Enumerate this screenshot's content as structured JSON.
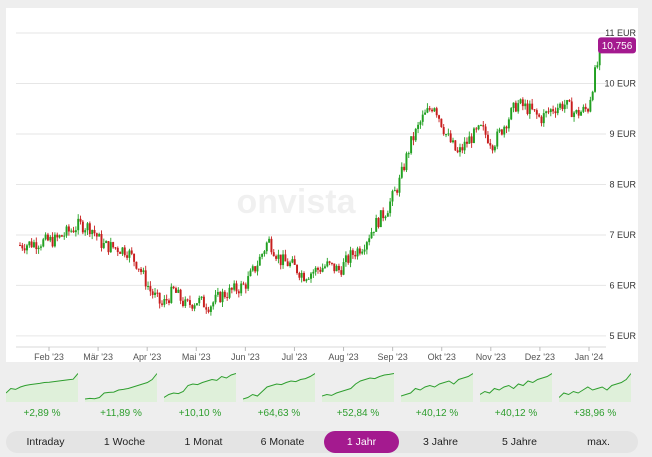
{
  "chart_data": {
    "type": "candlestick",
    "title": "",
    "watermark": "onvista",
    "y_unit": "EUR",
    "y_ticks": [
      {
        "value": 5,
        "label": "5 EUR"
      },
      {
        "value": 6,
        "label": "6 EUR"
      },
      {
        "value": 7,
        "label": "7 EUR"
      },
      {
        "value": 8,
        "label": "8 EUR"
      },
      {
        "value": 9,
        "label": "9 EUR"
      },
      {
        "value": 10,
        "label": "10 EUR"
      },
      {
        "value": 11,
        "label": "11 EUR"
      }
    ],
    "ylim": [
      4.8,
      11.1
    ],
    "x_ticks": [
      "Feb '23",
      "Mär '23",
      "Apr '23",
      "Mai '23",
      "Jun '23",
      "Jul '23",
      "Aug '23",
      "Sep '23",
      "Okt '23",
      "Nov '23",
      "Dez '23",
      "Jan '24"
    ],
    "current_price": {
      "value": 10.756,
      "label": "10,756"
    },
    "path_points": [
      [
        0,
        6.8
      ],
      [
        3,
        6.9
      ],
      [
        5,
        7.2
      ],
      [
        6,
        7.15
      ],
      [
        7,
        6.8
      ],
      [
        9,
        6.7
      ],
      [
        10,
        6.4
      ],
      [
        11,
        5.9
      ],
      [
        12,
        5.6
      ],
      [
        13,
        5.9
      ],
      [
        14,
        5.6
      ],
      [
        15,
        5.7
      ],
      [
        16,
        5.6
      ],
      [
        17,
        5.8
      ],
      [
        18,
        5.9
      ],
      [
        19,
        6.0
      ],
      [
        20,
        6.4
      ],
      [
        21,
        6.9
      ],
      [
        22,
        6.5
      ],
      [
        23,
        6.4
      ],
      [
        24,
        6.2
      ],
      [
        25,
        6.3
      ],
      [
        26,
        6.4
      ],
      [
        27,
        6.3
      ],
      [
        28,
        6.6
      ],
      [
        29,
        6.8
      ],
      [
        30,
        7.2
      ],
      [
        31,
        7.5
      ],
      [
        32,
        8.0
      ],
      [
        33,
        8.8
      ],
      [
        34,
        9.3
      ],
      [
        35,
        9.6
      ],
      [
        36,
        9.0
      ],
      [
        37,
        8.6
      ],
      [
        38,
        8.9
      ],
      [
        39,
        9.1
      ],
      [
        40,
        8.8
      ],
      [
        41,
        9.2
      ],
      [
        42,
        9.6
      ],
      [
        43,
        9.5
      ],
      [
        44,
        9.3
      ],
      [
        45,
        9.5
      ],
      [
        46,
        9.6
      ],
      [
        47,
        9.4
      ],
      [
        48,
        9.5
      ],
      [
        48.7,
        10.3
      ],
      [
        49,
        10.5
      ]
    ],
    "colors": {
      "up": "#22a022",
      "down": "#c81e1e",
      "accent": "#a41a8f",
      "grid": "#e6e6e6",
      "mini_line": "#2e9e2e",
      "mini_fill": "#dff0da"
    }
  },
  "mini_charts": [
    {
      "label": "+2,89 %",
      "values": [
        0.3,
        0.45,
        0.42,
        0.5,
        0.55,
        0.58,
        0.6,
        0.62,
        0.65,
        0.66,
        0.68,
        0.7,
        0.72,
        0.74,
        0.76,
        0.95
      ]
    },
    {
      "label": "+11,89 %",
      "values": [
        0.1,
        0.12,
        0.11,
        0.15,
        0.3,
        0.32,
        0.33,
        0.4,
        0.42,
        0.45,
        0.5,
        0.55,
        0.6,
        0.65,
        0.75,
        0.95
      ]
    },
    {
      "label": "+10,10 %",
      "values": [
        0.15,
        0.25,
        0.3,
        0.28,
        0.35,
        0.55,
        0.6,
        0.58,
        0.65,
        0.7,
        0.75,
        0.72,
        0.85,
        0.8,
        0.9,
        0.95
      ]
    },
    {
      "label": "+64,63 %",
      "values": [
        0.1,
        0.15,
        0.25,
        0.2,
        0.35,
        0.5,
        0.55,
        0.6,
        0.58,
        0.65,
        0.7,
        0.68,
        0.75,
        0.78,
        0.85,
        0.95
      ]
    },
    {
      "label": "+52,84 %",
      "values": [
        0.2,
        0.25,
        0.22,
        0.3,
        0.35,
        0.4,
        0.45,
        0.6,
        0.7,
        0.75,
        0.8,
        0.78,
        0.85,
        0.9,
        0.92,
        0.95
      ]
    },
    {
      "label": "+40,12 %",
      "values": [
        0.2,
        0.25,
        0.3,
        0.45,
        0.4,
        0.5,
        0.55,
        0.5,
        0.6,
        0.65,
        0.7,
        0.6,
        0.75,
        0.8,
        0.85,
        0.95
      ]
    },
    {
      "label": "+40,12 %",
      "values": [
        0.25,
        0.35,
        0.3,
        0.45,
        0.4,
        0.5,
        0.55,
        0.45,
        0.6,
        0.55,
        0.7,
        0.65,
        0.75,
        0.8,
        0.85,
        0.95
      ]
    },
    {
      "label": "+38,96 %",
      "values": [
        0.15,
        0.3,
        0.25,
        0.35,
        0.3,
        0.4,
        0.5,
        0.4,
        0.45,
        0.5,
        0.4,
        0.55,
        0.6,
        0.65,
        0.75,
        0.95
      ]
    }
  ],
  "tabs": [
    {
      "label": "Intraday",
      "active": false
    },
    {
      "label": "1 Woche",
      "active": false
    },
    {
      "label": "1 Monat",
      "active": false
    },
    {
      "label": "6 Monate",
      "active": false
    },
    {
      "label": "1 Jahr",
      "active": true
    },
    {
      "label": "3 Jahre",
      "active": false
    },
    {
      "label": "5 Jahre",
      "active": false
    },
    {
      "label": "max.",
      "active": false
    }
  ]
}
